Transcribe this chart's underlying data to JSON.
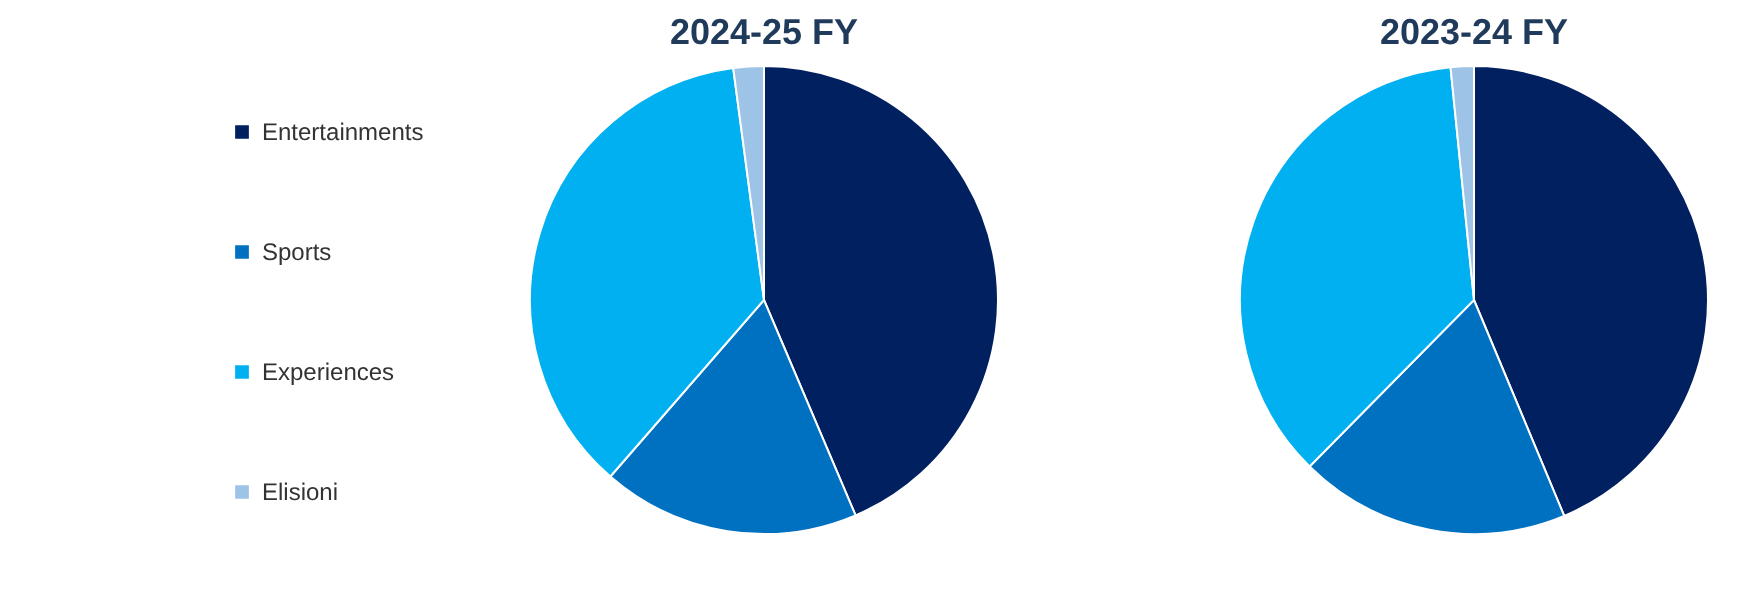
{
  "chart_data": [
    {
      "type": "pie",
      "title": "2024-25 FY",
      "categories": [
        "Entertainments",
        "Sports",
        "Experiences",
        "Elisioni"
      ],
      "values": [
        43.6,
        17.8,
        36.5,
        2.1
      ],
      "colors": [
        "#002060",
        "#0070c0",
        "#00b0f0",
        "#9dc3e6"
      ],
      "legend": "left"
    },
    {
      "type": "pie",
      "title": "2023-24 FY",
      "categories": [
        null,
        null,
        null,
        null
      ],
      "values": [
        43.7,
        18.7,
        36.0,
        1.6
      ],
      "colors": [
        "#002060",
        "#0070c0",
        "#00b0f0",
        "#9dc3e6"
      ]
    }
  ]
}
